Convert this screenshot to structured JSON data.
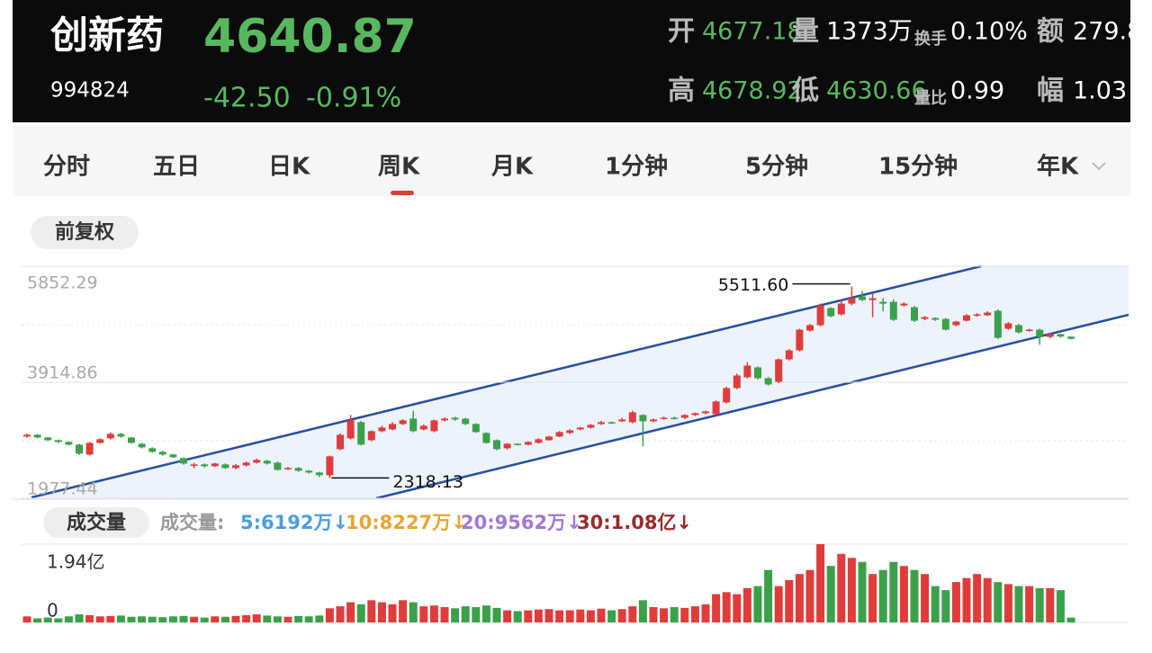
{
  "header": {
    "name": "创新药",
    "price": "4640.87",
    "code": "994824",
    "change": "-42.50",
    "change_pct": "-0.91%",
    "stats": [
      {
        "label": "开",
        "value": "4677.18"
      },
      {
        "label": "量",
        "value": "1373万"
      },
      {
        "label": "换手",
        "value": "0.10%"
      },
      {
        "label": "额",
        "value": "279.8"
      },
      {
        "label": "高",
        "value": "4678.92"
      },
      {
        "label": "低",
        "value": "4630.66"
      },
      {
        "label": "量比",
        "value": "0.99"
      },
      {
        "label": "幅",
        "value": "1.03"
      }
    ]
  },
  "tabs": [
    "分时",
    "五日",
    "日K",
    "周K",
    "月K",
    "1分钟",
    "5分钟",
    "15分钟",
    "年K"
  ],
  "active_tab": "周K",
  "adjust": "前复权",
  "volume_title": "成交量",
  "volume_legend": {
    "label": "成交量:",
    "items": [
      {
        "text": "5:6192万↓",
        "color": "#4a9de0"
      },
      {
        "text": "10:8227万↓",
        "color": "#e8a632"
      },
      {
        "text": "20:9562万↓",
        "color": "#a277d6"
      },
      {
        "text": "30:1.08亿↓",
        "color": "#9b2a2a"
      }
    ]
  },
  "chart_data": {
    "type": "candlestick",
    "up_color": "#e03c3c",
    "down_color": "#3aa14a",
    "ylim": [
      1977.44,
      5852.29
    ],
    "yticks": [
      1977.44,
      3914.86,
      5852.29
    ],
    "high_label": "5511.60",
    "low_label": "2318.13",
    "open": [
      3008,
      3038,
      2993,
      2948,
      2918,
      2873,
      2708,
      2903,
      2978,
      3053,
      2993,
      2888,
      2813,
      2753,
      2708,
      2648,
      2528,
      2543,
      2513,
      2543,
      2483,
      2528,
      2573,
      2603,
      2573,
      2468,
      2483,
      2438,
      2408,
      2363,
      2798,
      2978,
      3248,
      2948,
      3098,
      3128,
      3218,
      3308,
      3128,
      3098,
      3278,
      3323,
      3308,
      3218,
      3068,
      2948,
      2813,
      2888,
      2873,
      2903,
      2948,
      3008,
      3068,
      3128,
      3158,
      3218,
      3248,
      3263,
      3248,
      3368,
      3263,
      3308,
      3323,
      3323,
      3368,
      3398,
      3383,
      3578,
      3818,
      3998,
      4163,
      3983,
      3923,
      4298,
      4448,
      4778,
      4868,
      5153,
      5048,
      5228,
      5348,
      5288,
      5258,
      5258,
      5198,
      5168,
      4973,
      4988,
      4973,
      4868,
      4943,
      5033,
      5033,
      5108,
      4808,
      4868,
      4778,
      4793,
      4673,
      4718,
      4677.18
    ],
    "high": [
      3060,
      3050,
      3000,
      2960,
      2930,
      2890,
      2920,
      2980,
      3080,
      3070,
      3000,
      2900,
      2830,
      2770,
      2720,
      2660,
      2570,
      2560,
      2570,
      2560,
      2550,
      2590,
      2640,
      2620,
      2590,
      2500,
      2500,
      2450,
      2420,
      2690,
      3060,
      3370,
      3270,
      3110,
      3190,
      3250,
      3300,
      3440,
      3210,
      3290,
      3330,
      3340,
      3320,
      3230,
      3080,
      2960,
      2900,
      2900,
      2930,
      2980,
      3020,
      3100,
      3130,
      3170,
      3220,
      3270,
      3260,
      3320,
      3440,
      3380,
      3310,
      3340,
      3340,
      3380,
      3410,
      3440,
      3610,
      3840,
      4060,
      4250,
      4180,
      4000,
      4310,
      4470,
      4810,
      4890,
      5230,
      5170,
      5300,
      5511.6,
      5440,
      5400,
      5320,
      5300,
      5250,
      5190,
      5020,
      5000,
      4990,
      4940,
      5050,
      5070,
      5100,
      5130,
      4920,
      4890,
      4810,
      4810,
      4740,
      4730,
      4678.92
    ],
    "low": [
      2990,
      2980,
      2930,
      2900,
      2860,
      2700,
      2690,
      2890,
      2960,
      2990,
      2890,
      2810,
      2740,
      2690,
      2650,
      2540,
      2480,
      2490,
      2500,
      2470,
      2460,
      2510,
      2560,
      2540,
      2440,
      2450,
      2420,
      2390,
      2330,
      2318.13,
      2780,
      2960,
      2860,
      2930,
      3080,
      3110,
      3200,
      3080,
      3110,
      3080,
      3260,
      3270,
      3200,
      3070,
      2890,
      2780,
      2790,
      2860,
      2860,
      2890,
      2940,
      3000,
      3050,
      3110,
      3140,
      3200,
      3220,
      3250,
      3230,
      2843,
      3250,
      3290,
      3290,
      3300,
      3350,
      3380,
      3370,
      3560,
      3800,
      3980,
      3960,
      3860,
      3900,
      4280,
      4430,
      4760,
      4850,
      5000,
      5030,
      5200,
      5270,
      5000,
      5100,
      4940,
      5180,
      4920,
      4950,
      4940,
      4780,
      4850,
      4930,
      5010,
      5020,
      4640,
      4790,
      4730,
      4760,
      4540,
      4650,
      4660,
      4630.66
    ],
    "close": [
      3038,
      2993,
      2948,
      2918,
      2873,
      2723,
      2903,
      2963,
      3053,
      3008,
      2903,
      2828,
      2753,
      2708,
      2663,
      2558,
      2543,
      2513,
      2558,
      2483,
      2528,
      2573,
      2618,
      2558,
      2453,
      2483,
      2438,
      2408,
      2363,
      2678,
      3038,
      3278,
      2873,
      3098,
      3158,
      3218,
      3278,
      3098,
      3188,
      3278,
      3308,
      3293,
      3218,
      3083,
      2903,
      2798,
      2888,
      2873,
      2918,
      2963,
      3008,
      3083,
      3113,
      3158,
      3203,
      3248,
      3233,
      3293,
      3413,
      3263,
      3293,
      3323,
      3308,
      3368,
      3398,
      3428,
      3593,
      3818,
      4028,
      4193,
      3983,
      3878,
      4298,
      4448,
      4793,
      4868,
      5198,
      5018,
      5228,
      5318,
      5288,
      5318,
      5228,
      4958,
      5228,
      4943,
      5003,
      4958,
      4793,
      4928,
      5033,
      5048,
      5078,
      4658,
      4898,
      4748,
      4793,
      4673,
      4718,
      4678,
      4640.87
    ],
    "volume": [
      0.15,
      0.1,
      0.12,
      0.1,
      0.15,
      0.2,
      0.18,
      0.15,
      0.16,
      0.17,
      0.14,
      0.15,
      0.14,
      0.13,
      0.15,
      0.16,
      0.14,
      0.12,
      0.15,
      0.14,
      0.16,
      0.18,
      0.2,
      0.17,
      0.15,
      0.14,
      0.16,
      0.15,
      0.17,
      0.35,
      0.4,
      0.5,
      0.45,
      0.55,
      0.5,
      0.45,
      0.55,
      0.5,
      0.4,
      0.42,
      0.38,
      0.35,
      0.4,
      0.38,
      0.42,
      0.36,
      0.3,
      0.28,
      0.3,
      0.32,
      0.33,
      0.3,
      0.3,
      0.32,
      0.3,
      0.34,
      0.3,
      0.33,
      0.4,
      0.55,
      0.38,
      0.35,
      0.38,
      0.36,
      0.4,
      0.45,
      0.7,
      0.75,
      0.7,
      0.85,
      0.9,
      1.3,
      0.9,
      1.05,
      1.2,
      1.3,
      1.94,
      1.4,
      1.7,
      1.6,
      1.5,
      1.2,
      1.3,
      1.5,
      1.4,
      1.3,
      1.2,
      0.9,
      0.8,
      1.0,
      1.1,
      1.2,
      1.1,
      1.0,
      0.95,
      0.9,
      0.9,
      0.85,
      0.85,
      0.8,
      0.12
    ],
    "vlim": [
      0,
      1.94
    ],
    "vticks": [
      {
        "value": 1.94,
        "label": "1.94亿"
      },
      0
    ]
  }
}
